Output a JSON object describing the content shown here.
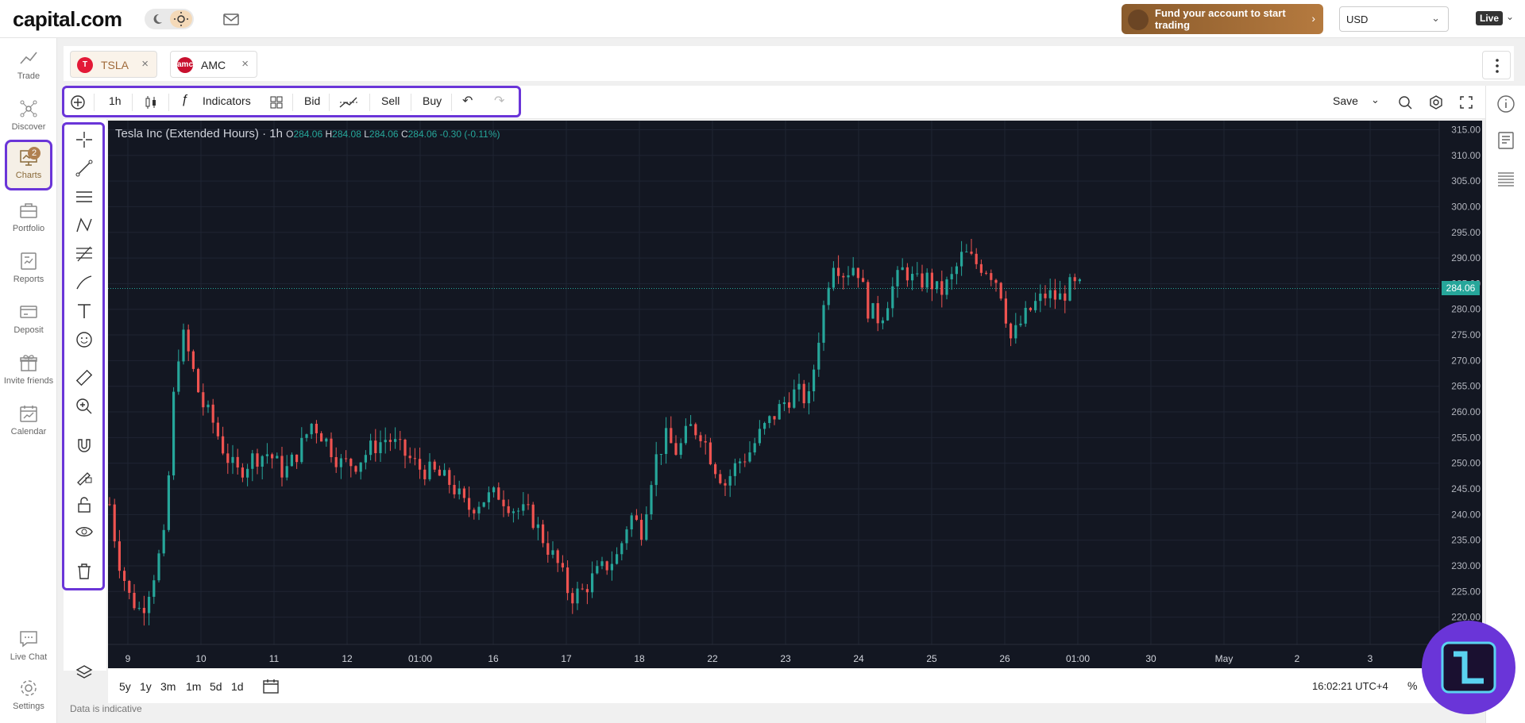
{
  "header": {
    "logo": "capital.com",
    "fund_banner": "Fund your account to start trading",
    "currency": "USD",
    "live_label": "Live"
  },
  "sidebar": {
    "items": [
      {
        "label": "Trade",
        "icon": "trade-icon"
      },
      {
        "label": "Discover",
        "icon": "discover-icon"
      },
      {
        "label": "Charts",
        "icon": "charts-icon",
        "badge": "2",
        "active": true
      },
      {
        "label": "Portfolio",
        "icon": "portfolio-icon"
      },
      {
        "label": "Reports",
        "icon": "reports-icon"
      },
      {
        "label": "Deposit",
        "icon": "deposit-icon"
      },
      {
        "label": "Invite friends",
        "icon": "gift-icon"
      },
      {
        "label": "Calendar",
        "icon": "calendar-icon"
      },
      {
        "label": "Live Chat",
        "icon": "chat-icon"
      },
      {
        "label": "Settings",
        "icon": "gear-icon"
      }
    ]
  },
  "tabs": [
    {
      "symbol": "TSLA",
      "active": true
    },
    {
      "symbol": "AMC",
      "active": false
    }
  ],
  "toolbar": {
    "interval": "1h",
    "indicators": "Indicators",
    "bid": "Bid",
    "sell": "Sell",
    "buy": "Buy",
    "save": "Save"
  },
  "chart": {
    "instrument": "Tesla Inc (Extended Hours) · 1h",
    "open_label": "O",
    "open": "284.06",
    "high_label": "H",
    "high": "284.08",
    "low_label": "L",
    "low": "284.06",
    "close_label": "C",
    "close": "284.06",
    "change": "-0.30 (-0.11%)",
    "last_price": "284.06",
    "up_color": "#26a69a",
    "down_color": "#ef5350"
  },
  "chart_data": {
    "type": "candlestick",
    "y_ticks": [
      "315.00",
      "310.00",
      "305.00",
      "300.00",
      "295.00",
      "290.00",
      "285.00",
      "280.00",
      "275.00",
      "270.00",
      "265.00",
      "260.00",
      "255.00",
      "250.00",
      "245.00",
      "240.00",
      "235.00",
      "230.00",
      "225.00",
      "220.00"
    ],
    "x_ticks": [
      "9",
      "10",
      "11",
      "12",
      "01:00",
      "16",
      "17",
      "18",
      "22",
      "23",
      "24",
      "25",
      "26",
      "01:00",
      "30",
      "May",
      "2",
      "3"
    ],
    "ylim": [
      217,
      316
    ],
    "last": 284.06,
    "close_path": [
      {
        "x": 0,
        "y": 242
      },
      {
        "x": 10,
        "y": 232
      },
      {
        "x": 25,
        "y": 224
      },
      {
        "x": 40,
        "y": 221
      },
      {
        "x": 55,
        "y": 228
      },
      {
        "x": 70,
        "y": 236
      },
      {
        "x": 80,
        "y": 262
      },
      {
        "x": 90,
        "y": 276
      },
      {
        "x": 100,
        "y": 271
      },
      {
        "x": 115,
        "y": 262
      },
      {
        "x": 130,
        "y": 258
      },
      {
        "x": 145,
        "y": 252
      },
      {
        "x": 160,
        "y": 248
      },
      {
        "x": 180,
        "y": 251
      },
      {
        "x": 200,
        "y": 252
      },
      {
        "x": 220,
        "y": 248
      },
      {
        "x": 240,
        "y": 253
      },
      {
        "x": 255,
        "y": 258
      },
      {
        "x": 270,
        "y": 255
      },
      {
        "x": 290,
        "y": 250
      },
      {
        "x": 310,
        "y": 250
      },
      {
        "x": 330,
        "y": 253
      },
      {
        "x": 350,
        "y": 255
      },
      {
        "x": 370,
        "y": 252
      },
      {
        "x": 390,
        "y": 249
      },
      {
        "x": 410,
        "y": 248
      },
      {
        "x": 430,
        "y": 246
      },
      {
        "x": 450,
        "y": 241
      },
      {
        "x": 470,
        "y": 243
      },
      {
        "x": 490,
        "y": 244
      },
      {
        "x": 510,
        "y": 241
      },
      {
        "x": 530,
        "y": 240
      },
      {
        "x": 550,
        "y": 234
      },
      {
        "x": 565,
        "y": 230
      },
      {
        "x": 580,
        "y": 224
      },
      {
        "x": 595,
        "y": 225
      },
      {
        "x": 610,
        "y": 228
      },
      {
        "x": 625,
        "y": 230
      },
      {
        "x": 640,
        "y": 232
      },
      {
        "x": 655,
        "y": 240
      },
      {
        "x": 670,
        "y": 237
      },
      {
        "x": 685,
        "y": 250
      },
      {
        "x": 700,
        "y": 255
      },
      {
        "x": 715,
        "y": 252
      },
      {
        "x": 730,
        "y": 257
      },
      {
        "x": 745,
        "y": 256
      },
      {
        "x": 760,
        "y": 250
      },
      {
        "x": 775,
        "y": 246
      },
      {
        "x": 790,
        "y": 250
      },
      {
        "x": 805,
        "y": 252
      },
      {
        "x": 820,
        "y": 256
      },
      {
        "x": 835,
        "y": 259
      },
      {
        "x": 850,
        "y": 262
      },
      {
        "x": 865,
        "y": 264
      },
      {
        "x": 880,
        "y": 262
      },
      {
        "x": 895,
        "y": 277
      },
      {
        "x": 910,
        "y": 290
      },
      {
        "x": 925,
        "y": 287
      },
      {
        "x": 940,
        "y": 289
      },
      {
        "x": 955,
        "y": 280
      },
      {
        "x": 970,
        "y": 278
      },
      {
        "x": 985,
        "y": 284
      },
      {
        "x": 1000,
        "y": 288
      },
      {
        "x": 1015,
        "y": 285
      },
      {
        "x": 1030,
        "y": 286
      },
      {
        "x": 1045,
        "y": 283
      },
      {
        "x": 1060,
        "y": 286
      },
      {
        "x": 1075,
        "y": 291
      },
      {
        "x": 1090,
        "y": 289
      },
      {
        "x": 1105,
        "y": 288
      },
      {
        "x": 1120,
        "y": 285
      },
      {
        "x": 1135,
        "y": 274
      },
      {
        "x": 1150,
        "y": 278
      },
      {
        "x": 1165,
        "y": 281
      },
      {
        "x": 1180,
        "y": 283
      },
      {
        "x": 1195,
        "y": 282
      },
      {
        "x": 1210,
        "y": 284.5
      },
      {
        "x": 1225,
        "y": 284.06
      }
    ]
  },
  "bottom": {
    "timeframes": [
      "5y",
      "1y",
      "3m",
      "1m",
      "5d",
      "1d"
    ],
    "clock": "16:02:21 UTC+4",
    "percent": "%",
    "disclaimer": "Data is indicative"
  }
}
